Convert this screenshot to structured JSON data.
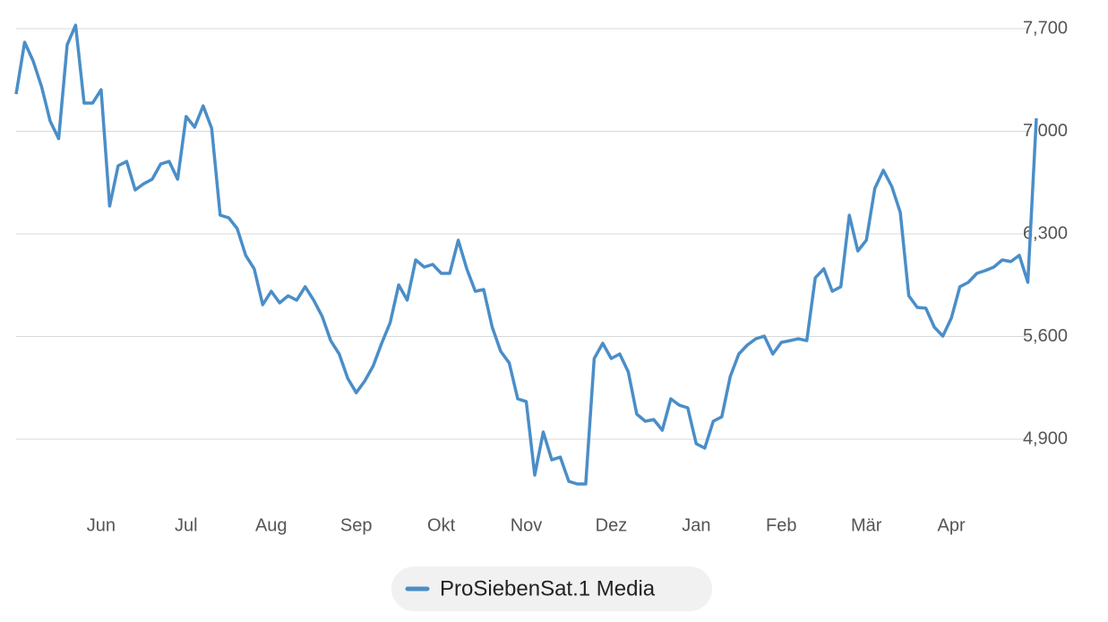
{
  "chart_data": {
    "type": "line",
    "categories": [
      null,
      null,
      null,
      null,
      null,
      null,
      null,
      null,
      null,
      null,
      "Jun",
      null,
      null,
      null,
      null,
      null,
      null,
      null,
      null,
      null,
      "Jul",
      null,
      null,
      null,
      null,
      null,
      null,
      null,
      null,
      null,
      "Aug",
      null,
      null,
      null,
      null,
      null,
      null,
      null,
      null,
      null,
      "Sep",
      null,
      null,
      null,
      null,
      null,
      null,
      null,
      null,
      null,
      "Okt",
      null,
      null,
      null,
      null,
      null,
      null,
      null,
      null,
      null,
      "Nov",
      null,
      null,
      null,
      null,
      null,
      null,
      null,
      null,
      null,
      "Dez",
      null,
      null,
      null,
      null,
      null,
      null,
      null,
      null,
      null,
      "Jan",
      null,
      null,
      null,
      null,
      null,
      null,
      null,
      null,
      null,
      "Feb",
      null,
      null,
      null,
      null,
      null,
      null,
      null,
      null,
      null,
      "Mär",
      null,
      null,
      null,
      null,
      null,
      null,
      null,
      null,
      null,
      "Apr",
      null,
      null,
      null,
      null,
      null,
      null,
      null,
      null,
      null,
      null
    ],
    "series": [
      {
        "name": "ProSiebenSat.1 Media",
        "color": "#4a8ec8",
        "values": [
          7254,
          7608,
          7480,
          7303,
          7070,
          6950,
          7590,
          7724,
          7193,
          7193,
          7284,
          6490,
          6765,
          6795,
          6600,
          6642,
          6673,
          6777,
          6795,
          6673,
          7101,
          7028,
          7174,
          7021,
          6428,
          6410,
          6337,
          6154,
          6062,
          5817,
          5909,
          5830,
          5878,
          5848,
          5940,
          5848,
          5737,
          5572,
          5481,
          5315,
          5217,
          5297,
          5401,
          5554,
          5695,
          5952,
          5848,
          6123,
          6074,
          6092,
          6031,
          6031,
          6257,
          6062,
          5909,
          5921,
          5664,
          5499,
          5420,
          5175,
          5156,
          4655,
          4949,
          4759,
          4778,
          4612,
          4594,
          4594,
          5450,
          5554,
          5450,
          5481,
          5359,
          5071,
          5022,
          5034,
          4961,
          5175,
          5132,
          5114,
          4869,
          4839,
          5022,
          5052,
          5328,
          5481,
          5542,
          5585,
          5603,
          5481,
          5560,
          5572,
          5585,
          5572,
          6001,
          6062,
          5909,
          5940,
          6428,
          6184,
          6257,
          6611,
          6734,
          6624,
          6447,
          5878,
          5799,
          5793,
          5664,
          5603,
          5726,
          5940,
          5970,
          6031,
          6050,
          6074,
          6123,
          6111,
          6154,
          5970,
          7089
        ]
      }
    ],
    "ylim": [
      4450,
      7850
    ],
    "yticks": [
      {
        "value": 4900,
        "label": "4,900"
      },
      {
        "value": 5600,
        "label": "5,600"
      },
      {
        "value": 6300,
        "label": "6,300"
      },
      {
        "value": 7000,
        "label": "7,000"
      },
      {
        "value": 7700,
        "label": "7,700"
      }
    ],
    "grid": true
  }
}
